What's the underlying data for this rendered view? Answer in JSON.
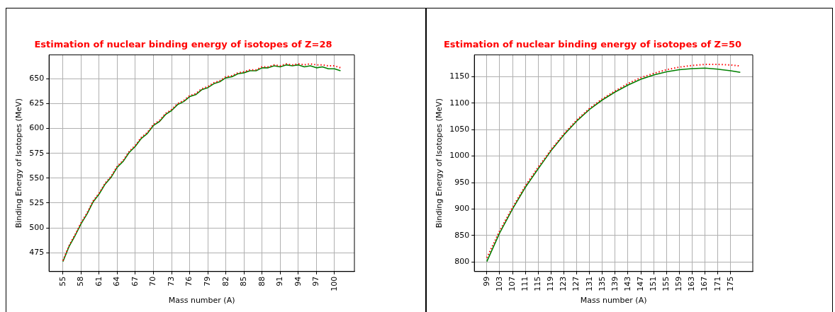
{
  "chart_data": [
    {
      "type": "line",
      "title": "Estimation of nuclear binding energy of isotopes of Z=28",
      "xlabel": "Mass number (A)",
      "ylabel": "Binding Energy of Isotopes (MeV)",
      "xlim": [
        52.7,
        103.3
      ],
      "xticks": [
        55,
        58,
        61,
        64,
        67,
        70,
        73,
        76,
        79,
        82,
        85,
        88,
        91,
        94,
        97,
        100
      ],
      "ylim": [
        456,
        674
      ],
      "yticks": [
        475,
        500,
        525,
        550,
        575,
        600,
        625,
        650
      ],
      "grid": true,
      "legend": false,
      "marker": "none",
      "series": [
        {
          "color": "#ff0000",
          "line_style": "dotted",
          "x": [
            55,
            56,
            57,
            58,
            59,
            60,
            61,
            62,
            63,
            64,
            65,
            66,
            67,
            68,
            69,
            70,
            71,
            72,
            73,
            74,
            75,
            76,
            77,
            78,
            79,
            80,
            81,
            82,
            83,
            84,
            85,
            86,
            87,
            88,
            89,
            90,
            91,
            92,
            93,
            94,
            95,
            96,
            97,
            98,
            99,
            100,
            101
          ],
          "values": [
            467,
            482,
            493,
            505,
            515,
            527,
            535,
            545,
            552,
            562,
            568,
            577,
            583,
            591,
            596,
            604,
            608,
            615,
            619,
            625,
            628,
            633,
            635,
            640,
            642,
            646,
            648,
            652,
            653,
            656,
            657,
            659,
            659,
            662,
            662,
            664,
            663,
            665,
            664,
            665,
            664,
            665,
            664,
            664,
            663,
            663,
            661
          ]
        },
        {
          "color": "#008000",
          "line_style": "solid",
          "x": [
            55,
            56,
            57,
            58,
            59,
            60,
            61,
            62,
            63,
            64,
            65,
            66,
            67,
            68,
            69,
            70,
            71,
            72,
            73,
            74,
            75,
            76,
            77,
            78,
            79,
            80,
            81,
            82,
            83,
            84,
            85,
            86,
            87,
            88,
            89,
            90,
            91,
            92,
            93,
            94,
            95,
            96,
            97,
            98,
            99,
            100,
            101
          ],
          "values": [
            466,
            481,
            492,
            504,
            514,
            526,
            534,
            544,
            551,
            561,
            567,
            576,
            582,
            590,
            595,
            603,
            607,
            614,
            618,
            624,
            627,
            632,
            634,
            639,
            641,
            645,
            647,
            651,
            652,
            655,
            656,
            658,
            658,
            661,
            661,
            663,
            662,
            664,
            663,
            664,
            662,
            663,
            661,
            662,
            660,
            660,
            658
          ]
        }
      ]
    },
    {
      "type": "line",
      "title": "Estimation of nuclear binding energy of isotopes of Z=50",
      "xlabel": "Mass number (A)",
      "ylabel": "Binding Energy of Isotopes (MeV)",
      "xlim": [
        95.1,
        181.9
      ],
      "xticks": [
        99,
        103,
        107,
        111,
        115,
        119,
        123,
        127,
        131,
        135,
        139,
        143,
        147,
        151,
        155,
        159,
        163,
        167,
        171,
        175
      ],
      "ylim": [
        782,
        1191
      ],
      "yticks": [
        800,
        850,
        900,
        950,
        1000,
        1050,
        1100,
        1150
      ],
      "grid": true,
      "legend": false,
      "marker": "none",
      "series": [
        {
          "color": "#ff0000",
          "line_style": "dotted",
          "x": [
            99,
            103,
            107,
            111,
            115,
            119,
            123,
            127,
            131,
            135,
            139,
            143,
            147,
            151,
            155,
            159,
            163,
            167,
            171,
            175,
            178
          ],
          "values": [
            808,
            859,
            903,
            944,
            979,
            1012,
            1042,
            1068,
            1090,
            1108,
            1123,
            1137,
            1148,
            1156,
            1163,
            1168,
            1171,
            1173,
            1173,
            1172,
            1170
          ]
        },
        {
          "color": "#008000",
          "line_style": "solid",
          "x": [
            99,
            103,
            107,
            111,
            115,
            119,
            123,
            127,
            131,
            135,
            139,
            143,
            147,
            151,
            155,
            159,
            163,
            167,
            171,
            175,
            178
          ],
          "values": [
            801,
            855,
            900,
            941,
            976,
            1010,
            1040,
            1066,
            1088,
            1106,
            1121,
            1134,
            1145,
            1153,
            1159,
            1163,
            1165,
            1166,
            1164,
            1161,
            1158
          ]
        }
      ]
    }
  ]
}
